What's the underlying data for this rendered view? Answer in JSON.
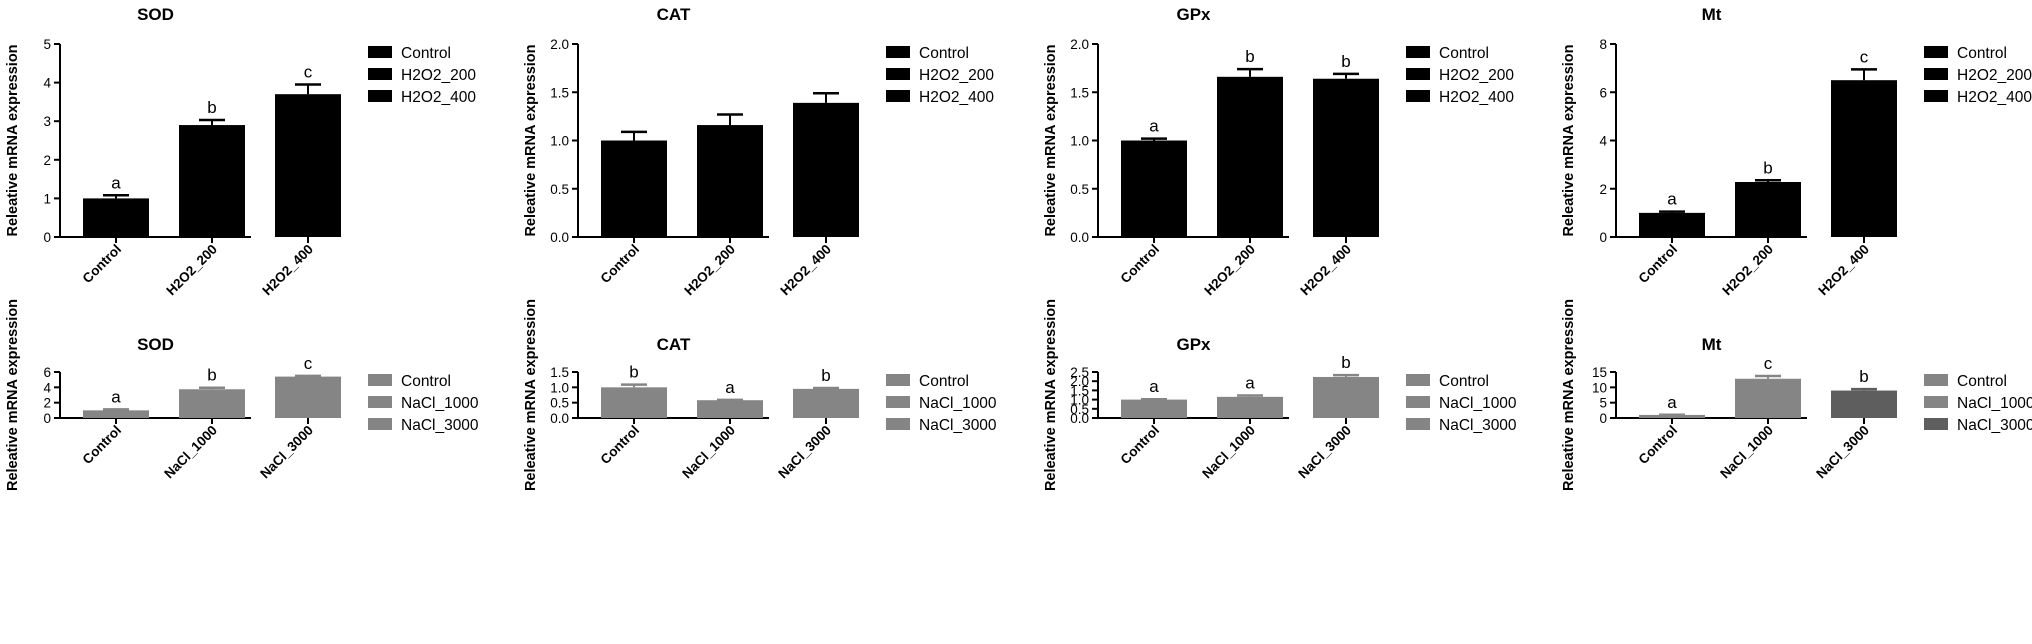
{
  "chart_data": [
    {
      "type": "bar",
      "title": "SOD",
      "ylabel": "Releative mRNA expression",
      "xlabel": "",
      "categories": [
        "Control",
        "H2O2_200",
        "H2O2_400"
      ],
      "values": [
        1.0,
        2.9,
        3.7
      ],
      "errors": [
        0.08,
        0.13,
        0.25
      ],
      "letters": [
        "a",
        "b",
        "c"
      ],
      "colors": [
        "#000000",
        "#000000",
        "#000000"
      ],
      "ylim": [
        0,
        5
      ],
      "yticks": [
        0,
        1,
        2,
        3,
        4,
        5
      ],
      "ytick_labels": [
        "0",
        "1",
        "2",
        "3",
        "4",
        "5"
      ],
      "legend": [
        "Control",
        "H2O2_200",
        "H2O2_400"
      ]
    },
    {
      "type": "bar",
      "title": "CAT",
      "ylabel": "Releative mRNA expression",
      "xlabel": "",
      "categories": [
        "Control",
        "H2O2_200",
        "H2O2_400"
      ],
      "values": [
        1.0,
        1.16,
        1.39
      ],
      "errors": [
        0.09,
        0.11,
        0.1
      ],
      "letters": [
        "",
        "",
        ""
      ],
      "colors": [
        "#000000",
        "#000000",
        "#000000"
      ],
      "ylim": [
        0,
        2
      ],
      "yticks": [
        0,
        0.5,
        1,
        1.5,
        2
      ],
      "ytick_labels": [
        "0.0",
        "0.5",
        "1.0",
        "1.5",
        "2.0"
      ],
      "legend": [
        "Control",
        "H2O2_200",
        "H2O2_400"
      ]
    },
    {
      "type": "bar",
      "title": "GPx",
      "ylabel": "Releative mRNA expression",
      "xlabel": "",
      "categories": [
        "Control",
        "H2O2_200",
        "H2O2_400"
      ],
      "values": [
        1.0,
        1.66,
        1.64
      ],
      "errors": [
        0.02,
        0.08,
        0.05
      ],
      "letters": [
        "a",
        "b",
        "b"
      ],
      "colors": [
        "#000000",
        "#000000",
        "#000000"
      ],
      "ylim": [
        0,
        2
      ],
      "yticks": [
        0,
        0.5,
        1,
        1.5,
        2
      ],
      "ytick_labels": [
        "0.0",
        "0.5",
        "1.0",
        "1.5",
        "2.0"
      ],
      "legend": [
        "Control",
        "H2O2_200",
        "H2O2_400"
      ]
    },
    {
      "type": "bar",
      "title": "Mt",
      "ylabel": "Releative mRNA expression",
      "xlabel": "",
      "categories": [
        "Control",
        "H2O2_200",
        "H2O2_400"
      ],
      "values": [
        1.0,
        2.28,
        6.5
      ],
      "errors": [
        0.05,
        0.07,
        0.45
      ],
      "letters": [
        "a",
        "b",
        "c"
      ],
      "colors": [
        "#000000",
        "#000000",
        "#000000"
      ],
      "ylim": [
        0,
        8
      ],
      "yticks": [
        0,
        2,
        4,
        6,
        8
      ],
      "ytick_labels": [
        "0",
        "2",
        "4",
        "6",
        "8"
      ],
      "legend": [
        "Control",
        "H2O2_200",
        "H2O2_400"
      ]
    },
    {
      "type": "bar",
      "title": "SOD",
      "ylabel": "Releative mRNA expression",
      "xlabel": "",
      "categories": [
        "Control",
        "NaCl_1000",
        "NaCl_3000"
      ],
      "values": [
        1.0,
        3.75,
        5.4
      ],
      "errors": [
        0.12,
        0.2,
        0.1
      ],
      "letters": [
        "a",
        "b",
        "c"
      ],
      "colors": [
        "#858585",
        "#858585",
        "#858585"
      ],
      "ylim": [
        0,
        6
      ],
      "yticks": [
        0,
        2,
        4,
        6
      ],
      "ytick_labels": [
        "0",
        "2",
        "4",
        "6"
      ],
      "legend": [
        "Control",
        "NaCl_1000",
        "NaCl_3000"
      ]
    },
    {
      "type": "bar",
      "title": "CAT",
      "ylabel": "Releative mRNA expression",
      "xlabel": "",
      "categories": [
        "Control",
        "NaCl_1000",
        "NaCl_3000"
      ],
      "values": [
        1.0,
        0.58,
        0.95
      ],
      "errors": [
        0.09,
        0.01,
        0.03
      ],
      "letters": [
        "b",
        "a",
        "b"
      ],
      "colors": [
        "#858585",
        "#858585",
        "#858585"
      ],
      "ylim": [
        0,
        1.5
      ],
      "yticks": [
        0,
        0.5,
        1,
        1.5
      ],
      "ytick_labels": [
        "0.0",
        "0.5",
        "1.0",
        "1.5"
      ],
      "legend": [
        "Control",
        "NaCl_1000",
        "NaCl_3000"
      ]
    },
    {
      "type": "bar",
      "title": "GPx",
      "ylabel": "Releative mRNA expression",
      "xlabel": "",
      "categories": [
        "Control",
        "NaCl_1000",
        "NaCl_3000"
      ],
      "values": [
        1.0,
        1.15,
        2.23
      ],
      "errors": [
        0.02,
        0.07,
        0.1
      ],
      "letters": [
        "a",
        "a",
        "b"
      ],
      "colors": [
        "#858585",
        "#858585",
        "#858585"
      ],
      "ylim": [
        0,
        2.5
      ],
      "yticks": [
        0,
        0.5,
        1,
        1.5,
        2,
        2.5
      ],
      "ytick_labels": [
        "0.0",
        "0.5",
        "1.0",
        "1.5",
        "2.0",
        "2.5"
      ],
      "legend": [
        "Control",
        "NaCl_1000",
        "NaCl_3000"
      ]
    },
    {
      "type": "bar",
      "title": "Mt",
      "ylabel": "Releative mRNA expression",
      "xlabel": "",
      "categories": [
        "Control",
        "NaCl_1000",
        "NaCl_3000"
      ],
      "values": [
        1.0,
        12.8,
        8.95
      ],
      "errors": [
        0.05,
        0.9,
        0.45
      ],
      "letters": [
        "a",
        "c",
        "b"
      ],
      "colors": [
        "#858585",
        "#858585",
        "#5e5e5e"
      ],
      "ylim": [
        0,
        15
      ],
      "yticks": [
        0,
        5,
        10,
        15
      ],
      "ytick_labels": [
        "0",
        "5",
        "10",
        "15"
      ],
      "legend": [
        "Control",
        "NaCl_1000",
        "NaCl_3000"
      ]
    }
  ]
}
